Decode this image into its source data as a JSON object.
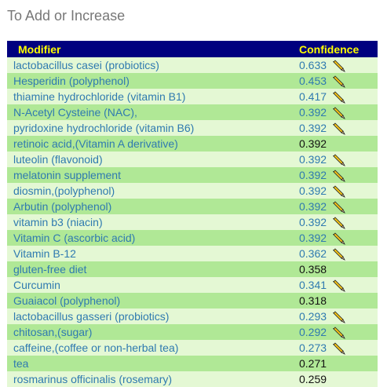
{
  "header": {
    "title": "To Add or Increase"
  },
  "table": {
    "columns": [
      "Modifier",
      "Confidence"
    ],
    "rows": [
      {
        "name": "lactobacillus casei (probiotics)",
        "confidence": 0.633,
        "pencil": true
      },
      {
        "name": "Hesperidin (polyphenol)",
        "confidence": 0.453,
        "pencil": true
      },
      {
        "name": "thiamine hydrochloride (vitamin B1)",
        "confidence": 0.417,
        "pencil": true
      },
      {
        "name": "N-Acetyl Cysteine (NAC),",
        "confidence": 0.392,
        "pencil": true
      },
      {
        "name": "pyridoxine hydrochloride (vitamin B6)",
        "confidence": 0.392,
        "pencil": true
      },
      {
        "name": "retinoic acid,(Vitamin A derivative)",
        "confidence": 0.392,
        "pencil": false
      },
      {
        "name": "luteolin (flavonoid)",
        "confidence": 0.392,
        "pencil": true
      },
      {
        "name": "melatonin supplement",
        "confidence": 0.392,
        "pencil": true
      },
      {
        "name": "diosmin,(polyphenol)",
        "confidence": 0.392,
        "pencil": true
      },
      {
        "name": "Arbutin (polyphenol)",
        "confidence": 0.392,
        "pencil": true
      },
      {
        "name": "vitamin b3 (niacin)",
        "confidence": 0.392,
        "pencil": true
      },
      {
        "name": "Vitamin C (ascorbic acid)",
        "confidence": 0.392,
        "pencil": true
      },
      {
        "name": "Vitamin B-12",
        "confidence": 0.362,
        "pencil": true
      },
      {
        "name": "gluten-free diet",
        "confidence": 0.358,
        "pencil": false
      },
      {
        "name": "Curcumin",
        "confidence": 0.341,
        "pencil": true
      },
      {
        "name": "Guaiacol (polyphenol)",
        "confidence": 0.318,
        "pencil": false
      },
      {
        "name": "lactobacillus gasseri (probiotics)",
        "confidence": 0.293,
        "pencil": true
      },
      {
        "name": "chitosan,(sugar)",
        "confidence": 0.292,
        "pencil": true
      },
      {
        "name": "caffeine,(coffee or non-herbal tea)",
        "confidence": 0.273,
        "pencil": true
      },
      {
        "name": "tea",
        "confidence": 0.271,
        "pencil": false
      },
      {
        "name": "rosmarinus officinalis (rosemary)",
        "confidence": 0.259,
        "pencil": false
      }
    ]
  }
}
